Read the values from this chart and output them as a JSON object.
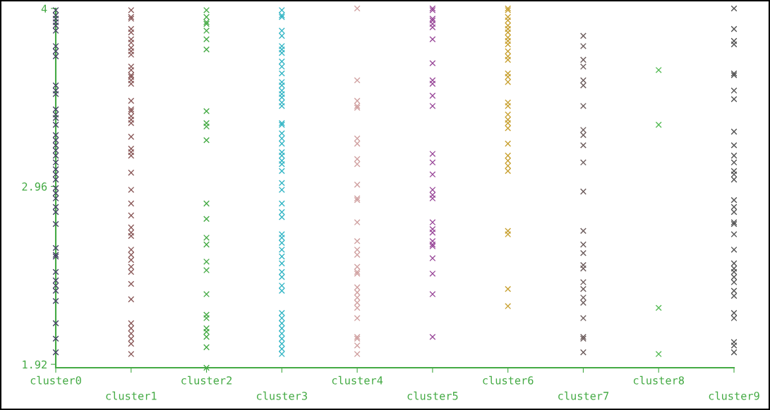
{
  "chart_data": {
    "type": "scatter",
    "marker": "cross",
    "grid": false,
    "legend": false,
    "categories": [
      "cluster0",
      "cluster1",
      "cluster2",
      "cluster3",
      "cluster4",
      "cluster5",
      "cluster6",
      "cluster7",
      "cluster8",
      "cluster9"
    ],
    "ylim": [
      1.9,
      4.0
    ],
    "yticks": [
      1.92,
      2.96,
      4
    ],
    "series": [
      {
        "color": "#404060",
        "x": [
          "cluster0",
          "cluster0",
          "cluster0",
          "cluster0",
          "cluster0",
          "cluster0",
          "cluster0",
          "cluster0",
          "cluster0",
          "cluster0",
          "cluster0",
          "cluster0",
          "cluster0",
          "cluster0",
          "cluster0",
          "cluster0",
          "cluster0",
          "cluster0",
          "cluster0",
          "cluster0",
          "cluster0",
          "cluster0",
          "cluster0",
          "cluster0",
          "cluster0",
          "cluster0",
          "cluster0",
          "cluster0",
          "cluster0",
          "cluster0",
          "cluster0",
          "cluster0",
          "cluster0",
          "cluster0",
          "cluster0",
          "cluster0",
          "cluster0",
          "cluster0",
          "cluster0",
          "cluster0",
          "cluster0",
          "cluster0"
        ],
        "values": [
          3.99,
          3.96,
          3.94,
          3.92,
          3.9,
          3.87,
          3.78,
          3.75,
          3.72,
          3.55,
          3.52,
          3.5,
          3.41,
          3.38,
          3.36,
          3.32,
          3.26,
          3.23,
          3.2,
          3.17,
          3.14,
          3.1,
          3.06,
          3.03,
          3.0,
          2.95,
          2.92,
          2.89,
          2.84,
          2.81,
          2.74,
          2.6,
          2.56,
          2.55,
          2.46,
          2.41,
          2.38,
          2.35,
          2.29,
          2.16,
          2.07,
          1.99
        ]
      },
      {
        "color": "#8b5a5a",
        "x": [
          "cluster1",
          "cluster1",
          "cluster1",
          "cluster1",
          "cluster1",
          "cluster1",
          "cluster1",
          "cluster1",
          "cluster1",
          "cluster1",
          "cluster1",
          "cluster1",
          "cluster1",
          "cluster1",
          "cluster1",
          "cluster1",
          "cluster1",
          "cluster1",
          "cluster1",
          "cluster1",
          "cluster1",
          "cluster1",
          "cluster1",
          "cluster1",
          "cluster1",
          "cluster1",
          "cluster1",
          "cluster1",
          "cluster1",
          "cluster1",
          "cluster1",
          "cluster1",
          "cluster1",
          "cluster1",
          "cluster1",
          "cluster1",
          "cluster1",
          "cluster1",
          "cluster1",
          "cluster1",
          "cluster1",
          "cluster1",
          "cluster1",
          "cluster1",
          "cluster1",
          "cluster1"
        ],
        "values": [
          3.99,
          3.95,
          3.94,
          3.88,
          3.86,
          3.82,
          3.8,
          3.77,
          3.75,
          3.73,
          3.66,
          3.64,
          3.61,
          3.6,
          3.58,
          3.56,
          3.46,
          3.41,
          3.4,
          3.37,
          3.35,
          3.33,
          3.25,
          3.18,
          3.16,
          3.14,
          3.04,
          2.94,
          2.86,
          2.79,
          2.72,
          2.69,
          2.67,
          2.59,
          2.56,
          2.53,
          2.49,
          2.46,
          2.39,
          2.3,
          2.16,
          2.13,
          2.1,
          2.07,
          2.04,
          1.98
        ]
      },
      {
        "color": "#44aa44",
        "x": [
          "cluster2",
          "cluster2",
          "cluster2",
          "cluster2",
          "cluster2",
          "cluster2",
          "cluster2",
          "cluster2",
          "cluster2",
          "cluster2",
          "cluster2",
          "cluster2",
          "cluster2",
          "cluster2",
          "cluster2",
          "cluster2",
          "cluster2",
          "cluster2",
          "cluster2",
          "cluster2",
          "cluster2",
          "cluster2",
          "cluster2",
          "cluster2",
          "cluster2"
        ],
        "values": [
          3.99,
          3.95,
          3.92,
          3.91,
          3.87,
          3.82,
          3.76,
          3.4,
          3.33,
          3.31,
          3.23,
          2.86,
          2.77,
          2.66,
          2.62,
          2.52,
          2.47,
          2.33,
          2.21,
          2.19,
          2.13,
          2.11,
          2.08,
          2.02,
          1.9
        ]
      },
      {
        "color": "#33b5c5",
        "x": [
          "cluster3",
          "cluster3",
          "cluster3",
          "cluster3",
          "cluster3",
          "cluster3",
          "cluster3",
          "cluster3",
          "cluster3",
          "cluster3",
          "cluster3",
          "cluster3",
          "cluster3",
          "cluster3",
          "cluster3",
          "cluster3",
          "cluster3",
          "cluster3",
          "cluster3",
          "cluster3",
          "cluster3",
          "cluster3",
          "cluster3",
          "cluster3",
          "cluster3",
          "cluster3",
          "cluster3",
          "cluster3",
          "cluster3",
          "cluster3",
          "cluster3",
          "cluster3",
          "cluster3",
          "cluster3",
          "cluster3",
          "cluster3",
          "cluster3",
          "cluster3",
          "cluster3",
          "cluster3",
          "cluster3",
          "cluster3",
          "cluster3",
          "cluster3",
          "cluster3",
          "cluster3",
          "cluster3",
          "cluster3",
          "cluster3",
          "cluster3",
          "cluster3",
          "cluster3"
        ],
        "values": [
          3.99,
          3.96,
          3.95,
          3.87,
          3.84,
          3.78,
          3.76,
          3.74,
          3.69,
          3.66,
          3.62,
          3.57,
          3.55,
          3.52,
          3.5,
          3.48,
          3.45,
          3.43,
          3.33,
          3.32,
          3.27,
          3.24,
          3.21,
          3.16,
          3.14,
          3.11,
          3.09,
          3.05,
          2.98,
          2.94,
          2.86,
          2.81,
          2.78,
          2.68,
          2.66,
          2.63,
          2.59,
          2.55,
          2.51,
          2.46,
          2.43,
          2.38,
          2.35,
          2.22,
          2.19,
          2.16,
          2.13,
          2.1,
          2.07,
          2.04,
          2.01,
          1.98
        ]
      },
      {
        "color": "#d0a0a0",
        "x": [
          "cluster4",
          "cluster4",
          "cluster4",
          "cluster4",
          "cluster4",
          "cluster4",
          "cluster4",
          "cluster4",
          "cluster4",
          "cluster4",
          "cluster4",
          "cluster4",
          "cluster4",
          "cluster4",
          "cluster4",
          "cluster4",
          "cluster4",
          "cluster4",
          "cluster4",
          "cluster4",
          "cluster4",
          "cluster4",
          "cluster4",
          "cluster4",
          "cluster4",
          "cluster4",
          "cluster4",
          "cluster4",
          "cluster4"
        ],
        "values": [
          4.0,
          3.58,
          3.46,
          3.43,
          3.42,
          3.24,
          3.21,
          3.12,
          3.09,
          2.97,
          2.89,
          2.88,
          2.75,
          2.64,
          2.59,
          2.56,
          2.49,
          2.46,
          2.45,
          2.37,
          2.34,
          2.31,
          2.28,
          2.25,
          2.19,
          2.08,
          2.07,
          2.03,
          1.98
        ]
      },
      {
        "color": "#9a4a9a",
        "x": [
          "cluster5",
          "cluster5",
          "cluster5",
          "cluster5",
          "cluster5",
          "cluster5",
          "cluster5",
          "cluster5",
          "cluster5",
          "cluster5",
          "cluster5",
          "cluster5",
          "cluster5",
          "cluster5",
          "cluster5",
          "cluster5",
          "cluster5",
          "cluster5",
          "cluster5",
          "cluster5",
          "cluster5",
          "cluster5",
          "cluster5",
          "cluster5",
          "cluster5",
          "cluster5",
          "cluster5",
          "cluster5"
        ],
        "values": [
          4.0,
          3.99,
          3.94,
          3.93,
          3.91,
          3.89,
          3.82,
          3.68,
          3.58,
          3.56,
          3.49,
          3.43,
          3.15,
          3.1,
          3.03,
          2.94,
          2.91,
          2.89,
          2.75,
          2.71,
          2.69,
          2.64,
          2.62,
          2.61,
          2.54,
          2.45,
          2.33,
          2.08
        ]
      },
      {
        "color": "#c8a030",
        "x": [
          "cluster6",
          "cluster6",
          "cluster6",
          "cluster6",
          "cluster6",
          "cluster6",
          "cluster6",
          "cluster6",
          "cluster6",
          "cluster6",
          "cluster6",
          "cluster6",
          "cluster6",
          "cluster6",
          "cluster6",
          "cluster6",
          "cluster6",
          "cluster6",
          "cluster6",
          "cluster6",
          "cluster6",
          "cluster6",
          "cluster6",
          "cluster6",
          "cluster6",
          "cluster6",
          "cluster6",
          "cluster6",
          "cluster6",
          "cluster6",
          "cluster6"
        ],
        "values": [
          4.0,
          3.99,
          3.95,
          3.93,
          3.9,
          3.88,
          3.86,
          3.83,
          3.81,
          3.79,
          3.75,
          3.72,
          3.7,
          3.62,
          3.6,
          3.57,
          3.45,
          3.43,
          3.38,
          3.35,
          3.33,
          3.3,
          3.21,
          3.14,
          3.11,
          3.08,
          3.05,
          2.7,
          2.68,
          2.36,
          2.26
        ]
      },
      {
        "color": "#6a5a5a",
        "x": [
          "cluster7",
          "cluster7",
          "cluster7",
          "cluster7",
          "cluster7",
          "cluster7",
          "cluster7",
          "cluster7",
          "cluster7",
          "cluster7",
          "cluster7",
          "cluster7",
          "cluster7",
          "cluster7",
          "cluster7",
          "cluster7",
          "cluster7",
          "cluster7",
          "cluster7",
          "cluster7",
          "cluster7",
          "cluster7",
          "cluster7",
          "cluster7",
          "cluster7"
        ],
        "values": [
          3.84,
          3.78,
          3.7,
          3.66,
          3.58,
          3.55,
          3.43,
          3.29,
          3.26,
          3.2,
          3.1,
          2.93,
          2.7,
          2.62,
          2.57,
          2.5,
          2.48,
          2.4,
          2.36,
          2.31,
          2.28,
          2.19,
          2.08,
          2.07,
          1.99
        ]
      },
      {
        "color": "#55bb55",
        "x": [
          "cluster8",
          "cluster8",
          "cluster8",
          "cluster8"
        ],
        "values": [
          3.64,
          3.32,
          2.25,
          1.98
        ]
      },
      {
        "color": "#505050",
        "x": [
          "cluster9",
          "cluster9",
          "cluster9",
          "cluster9",
          "cluster9",
          "cluster9",
          "cluster9",
          "cluster9",
          "cluster9",
          "cluster9",
          "cluster9",
          "cluster9",
          "cluster9",
          "cluster9",
          "cluster9",
          "cluster9",
          "cluster9",
          "cluster9",
          "cluster9",
          "cluster9",
          "cluster9",
          "cluster9",
          "cluster9",
          "cluster9",
          "cluster9",
          "cluster9",
          "cluster9",
          "cluster9",
          "cluster9",
          "cluster9",
          "cluster9",
          "cluster9",
          "cluster9",
          "cluster9"
        ],
        "values": [
          4.0,
          3.88,
          3.81,
          3.79,
          3.62,
          3.61,
          3.52,
          3.47,
          3.28,
          3.2,
          3.14,
          3.1,
          3.05,
          3.03,
          3.0,
          2.88,
          2.84,
          2.81,
          2.75,
          2.74,
          2.68,
          2.59,
          2.51,
          2.48,
          2.46,
          2.43,
          2.4,
          2.35,
          2.32,
          2.22,
          2.19,
          2.05,
          2.03,
          1.99
        ]
      }
    ]
  }
}
